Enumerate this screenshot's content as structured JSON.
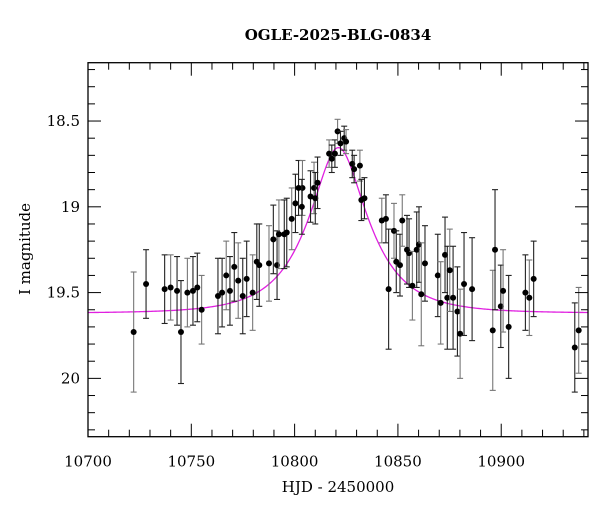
{
  "chart_data": {
    "type": "scatter",
    "title": "OGLE-2025-BLG-0834",
    "xlabel": "HJD - 2450000",
    "ylabel": "I magnitude",
    "xlim": [
      10700,
      10942
    ],
    "ylim": [
      20.34,
      18.16
    ],
    "y_inverted": true,
    "grid": false,
    "legend": null,
    "xticks": [
      10700,
      10750,
      10800,
      10850,
      10900
    ],
    "xtick_labels": [
      "10700",
      "10750",
      "10800",
      "10850",
      "10900"
    ],
    "yticks": [
      18.5,
      19,
      19.5,
      20
    ],
    "ytick_labels": [
      "18.5",
      "19",
      "19.5",
      "20"
    ],
    "colors": {
      "points": "#000000",
      "errorbars": "#222222",
      "model": "#e020e0",
      "axes": "#000000"
    },
    "series": [
      {
        "name": "OGLE I-band photometry",
        "kind": "errorbar",
        "x": [
          10722.1,
          10728.1,
          10737.1,
          10740.0,
          10743.1,
          10745.0,
          10748.1,
          10750.8,
          10752.9,
          10755.0,
          10762.9,
          10764.9,
          10766.9,
          10768.7,
          10770.8,
          10772.7,
          10774.9,
          10776.8,
          10779.7,
          10781.7,
          10782.9,
          10787.6,
          10789.7,
          10791.5,
          10792.4,
          10795.0,
          10796.2,
          10798.6,
          10800.4,
          10801.9,
          10803.8,
          10803.5,
          10807.7,
          10809.4,
          10810.0,
          10811.1,
          10816.7,
          10818.0,
          10819.5,
          10820.8,
          10822.2,
          10824.0,
          10824.9,
          10827.9,
          10828.8,
          10831.6,
          10832.3,
          10833.8,
          10842.2,
          10844.2,
          10845.5,
          10848.1,
          10849.2,
          10851.0,
          10852.1,
          10854.4,
          10855.4,
          10857.0,
          10859.1,
          10860.2,
          10861.3,
          10863.1,
          10869.3,
          10870.7,
          10872.8,
          10873.9,
          10875.1,
          10876.7,
          10878.8,
          10880.1,
          10882.0,
          10885.9,
          10895.9,
          10897.0,
          10899.8,
          10900.9,
          10903.6,
          10911.7,
          10913.6,
          10915.7,
          10935.6,
          10937.5
        ],
        "y": [
          19.73,
          19.45,
          19.48,
          19.47,
          19.49,
          19.73,
          19.5,
          19.49,
          19.47,
          19.6,
          19.52,
          19.5,
          19.4,
          19.49,
          19.35,
          19.43,
          19.52,
          19.42,
          19.5,
          19.32,
          19.34,
          19.33,
          19.19,
          19.34,
          19.16,
          19.16,
          19.15,
          19.07,
          18.98,
          18.89,
          18.89,
          19.0,
          18.94,
          18.89,
          18.95,
          18.86,
          18.69,
          18.72,
          18.69,
          18.56,
          18.63,
          18.6,
          18.62,
          18.75,
          18.78,
          18.76,
          18.96,
          18.95,
          19.08,
          19.07,
          19.48,
          19.14,
          19.32,
          19.34,
          19.08,
          19.25,
          19.27,
          19.46,
          19.25,
          19.22,
          19.51,
          19.33,
          19.4,
          19.56,
          19.28,
          19.53,
          19.37,
          19.53,
          19.61,
          19.74,
          19.45,
          19.48,
          19.72,
          19.25,
          19.58,
          19.49,
          19.7,
          19.5,
          19.53,
          19.42,
          19.82,
          19.72
        ],
        "yerr": [
          0.35,
          0.2,
          0.2,
          0.19,
          0.2,
          0.3,
          0.2,
          0.2,
          0.2,
          0.2,
          0.22,
          0.2,
          0.2,
          0.2,
          0.2,
          0.22,
          0.22,
          0.22,
          0.22,
          0.22,
          0.24,
          0.22,
          0.2,
          0.2,
          0.2,
          0.2,
          0.2,
          0.18,
          0.17,
          0.16,
          0.16,
          0.16,
          0.15,
          0.15,
          0.15,
          0.15,
          0.08,
          0.08,
          0.08,
          0.07,
          0.07,
          0.07,
          0.07,
          0.08,
          0.08,
          0.09,
          0.12,
          0.12,
          0.13,
          0.14,
          0.35,
          0.16,
          0.18,
          0.18,
          0.15,
          0.2,
          0.2,
          0.2,
          0.22,
          0.22,
          0.3,
          0.22,
          0.24,
          0.24,
          0.22,
          0.3,
          0.24,
          0.3,
          0.26,
          0.26,
          0.3,
          0.3,
          0.35,
          0.35,
          0.24,
          0.24,
          0.3,
          0.22,
          0.22,
          0.22,
          0.26,
          0.25
        ]
      },
      {
        "name": "microlensing model",
        "kind": "line",
        "model": {
          "t0": 10821.2,
          "baseline_mag": 19.62,
          "peak_mag": 18.655,
          "tE": 26
        }
      }
    ]
  }
}
